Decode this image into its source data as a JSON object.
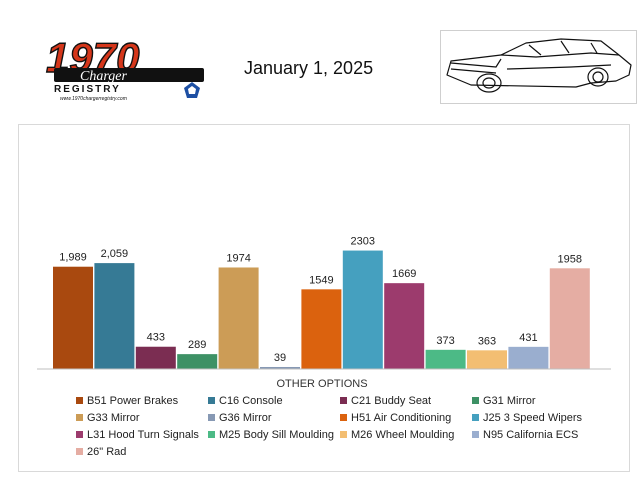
{
  "header": {
    "logo_year": "1970",
    "logo_script": "Charger",
    "logo_sub": "REGISTRY",
    "logo_url": "www.1970chargerregistry.com",
    "date": "January 1, 2025"
  },
  "colors": {
    "logo_red": "#d5361a",
    "logo_black": "#111111",
    "mopar_blue": "#1d4fa3",
    "baseline": "#bfbfbf"
  },
  "chart_data": {
    "type": "bar",
    "xlabel": "OTHER OPTIONS",
    "ylabel": "",
    "ylim": [
      0,
      2450
    ],
    "grid": false,
    "legend_position": "bottom",
    "series": [
      {
        "name": "B51 Power Brakes",
        "value": 1989,
        "label": "1,989",
        "color": "#a9490f"
      },
      {
        "name": "C16 Console",
        "value": 2059,
        "label": "2,059",
        "color": "#367a95"
      },
      {
        "name": "C21 Buddy Seat",
        "value": 433,
        "label": "433",
        "color": "#7b2d52"
      },
      {
        "name": "G31 Mirror",
        "value": 289,
        "label": "289",
        "color": "#3d9165"
      },
      {
        "name": "G33 Mirror",
        "value": 1974,
        "label": "1974",
        "color": "#cc9c56"
      },
      {
        "name": "G36 Mirror",
        "value": 39,
        "label": "39",
        "color": "#8799b4"
      },
      {
        "name": "H51 Air Conditioning",
        "value": 1549,
        "label": "1549",
        "color": "#db620e"
      },
      {
        "name": "J25 3 Speed Wipers",
        "value": 2303,
        "label": "2303",
        "color": "#45a0bf"
      },
      {
        "name": "L31 Hood Turn Signals",
        "value": 1669,
        "label": "1669",
        "color": "#9c3b6d"
      },
      {
        "name": "M25 Body Sill Moulding",
        "value": 373,
        "label": "373",
        "color": "#4cba86"
      },
      {
        "name": "M26 Wheel Moulding",
        "value": 363,
        "label": "363",
        "color": "#f3be72"
      },
      {
        "name": "N95 California ECS",
        "value": 431,
        "label": "431",
        "color": "#9aaecf"
      },
      {
        "name": "26\" Rad",
        "value": 1958,
        "label": "1958",
        "color": "#e5ada3"
      }
    ]
  }
}
